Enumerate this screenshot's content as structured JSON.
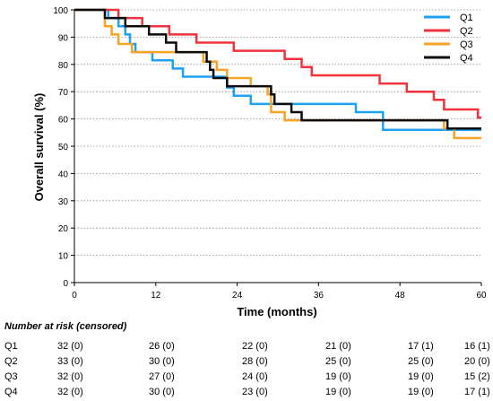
{
  "chart_data": {
    "type": "line",
    "xlabel": "Time (months)",
    "ylabel": "Overall survival  (%)",
    "xlim": [
      0,
      60
    ],
    "ylim": [
      0,
      100
    ],
    "x_ticks": [
      "0",
      "12",
      "24",
      "36",
      "48",
      "60"
    ],
    "y_ticks": [
      "0",
      "10",
      "20",
      "30",
      "40",
      "50",
      "60",
      "70",
      "80",
      "90",
      "100"
    ],
    "grid": "horizontal dotted",
    "legend_position": "top-right",
    "series": [
      {
        "name": "Q1",
        "color": "#1ea1f1",
        "points": [
          [
            0,
            100
          ],
          [
            5.0,
            100
          ],
          [
            5.0,
            97
          ],
          [
            6.5,
            97
          ],
          [
            6.5,
            94
          ],
          [
            7.5,
            94
          ],
          [
            7.5,
            91
          ],
          [
            8.2,
            91
          ],
          [
            8.2,
            87.5
          ],
          [
            9.0,
            87.5
          ],
          [
            9.0,
            84.5
          ],
          [
            11.5,
            84.5
          ],
          [
            11.5,
            81.5
          ],
          [
            14.5,
            81.5
          ],
          [
            14.5,
            78.5
          ],
          [
            16.0,
            78.5
          ],
          [
            16.0,
            75.5
          ],
          [
            22.5,
            75.5
          ],
          [
            22.5,
            71.5
          ],
          [
            23.5,
            71.5
          ],
          [
            23.5,
            68.5
          ],
          [
            26.0,
            68.5
          ],
          [
            26.0,
            65.5
          ],
          [
            41.5,
            65.5
          ],
          [
            41.5,
            62.5
          ],
          [
            45.5,
            62.5
          ],
          [
            45.5,
            56
          ],
          [
            55.0,
            56
          ],
          [
            55.0,
            56
          ],
          [
            60,
            56
          ]
        ]
      },
      {
        "name": "Q2",
        "color": "#f0323c",
        "points": [
          [
            0,
            100
          ],
          [
            6.5,
            100
          ],
          [
            6.5,
            97
          ],
          [
            10.0,
            97
          ],
          [
            10.0,
            94
          ],
          [
            14.0,
            94
          ],
          [
            14.0,
            91
          ],
          [
            18.0,
            91
          ],
          [
            18.0,
            88
          ],
          [
            23.5,
            88
          ],
          [
            23.5,
            85
          ],
          [
            31.0,
            85
          ],
          [
            31.0,
            82
          ],
          [
            33.5,
            82
          ],
          [
            33.5,
            79
          ],
          [
            35.0,
            79
          ],
          [
            35.0,
            76
          ],
          [
            45.0,
            76
          ],
          [
            45.0,
            73
          ],
          [
            49.0,
            73
          ],
          [
            49.0,
            70
          ],
          [
            53.0,
            70
          ],
          [
            53.0,
            67
          ],
          [
            54.5,
            67
          ],
          [
            54.5,
            63.5
          ],
          [
            59.5,
            63.5
          ],
          [
            59.5,
            60.5
          ],
          [
            60,
            60.5
          ]
        ]
      },
      {
        "name": "Q3",
        "color": "#f7a324",
        "points": [
          [
            0,
            100
          ],
          [
            4.5,
            100
          ],
          [
            4.5,
            94
          ],
          [
            5.5,
            94
          ],
          [
            5.5,
            91
          ],
          [
            6.5,
            91
          ],
          [
            6.5,
            87.5
          ],
          [
            8.5,
            87.5
          ],
          [
            8.5,
            84.5
          ],
          [
            19.0,
            84.5
          ],
          [
            19.0,
            81
          ],
          [
            21.0,
            81
          ],
          [
            21.0,
            78
          ],
          [
            22.5,
            78
          ],
          [
            22.5,
            75
          ],
          [
            26.0,
            75
          ],
          [
            26.0,
            72
          ],
          [
            28.5,
            72
          ],
          [
            28.5,
            69
          ],
          [
            29.0,
            69
          ],
          [
            29.0,
            62.5
          ],
          [
            31.0,
            62.5
          ],
          [
            31.0,
            59.5
          ],
          [
            54.5,
            59.5
          ],
          [
            54.5,
            56.5
          ],
          [
            56.0,
            56.5
          ],
          [
            56.0,
            53
          ],
          [
            60,
            53
          ]
        ]
      },
      {
        "name": "Q4",
        "color": "#0b0b0b",
        "points": [
          [
            0,
            100
          ],
          [
            4.5,
            100
          ],
          [
            4.5,
            97
          ],
          [
            7.5,
            97
          ],
          [
            7.5,
            94
          ],
          [
            11.0,
            94
          ],
          [
            11.0,
            91
          ],
          [
            13.5,
            91
          ],
          [
            13.5,
            88
          ],
          [
            15.0,
            88
          ],
          [
            15.0,
            84.5
          ],
          [
            19.5,
            84.5
          ],
          [
            19.5,
            81
          ],
          [
            20.0,
            81
          ],
          [
            20.0,
            78
          ],
          [
            20.5,
            78
          ],
          [
            20.5,
            75
          ],
          [
            22.5,
            75
          ],
          [
            22.5,
            72
          ],
          [
            29.0,
            72
          ],
          [
            29.0,
            69
          ],
          [
            29.5,
            69
          ],
          [
            29.5,
            65.5
          ],
          [
            32.0,
            65.5
          ],
          [
            32.0,
            62.5
          ],
          [
            33.5,
            62.5
          ],
          [
            33.5,
            59.5
          ],
          [
            55.0,
            59.5
          ],
          [
            55.0,
            56.5
          ],
          [
            60,
            56.5
          ]
        ]
      }
    ],
    "risk_table": {
      "title": "Number at risk (censored)",
      "rows": [
        {
          "name": "Q1",
          "values": [
            "32 (0)",
            "26 (0)",
            "22 (0)",
            "21 (0)",
            "17 (1)",
            "16 (1)"
          ]
        },
        {
          "name": "Q2",
          "values": [
            "33 (0)",
            "30 (0)",
            "28 (0)",
            "25 (0)",
            "25 (0)",
            "20 (0)"
          ]
        },
        {
          "name": "Q3",
          "values": [
            "32 (0)",
            "27 (0)",
            "24 (0)",
            "19 (0)",
            "19 (0)",
            "15 (2)"
          ]
        },
        {
          "name": "Q4",
          "values": [
            "32 (0)",
            "30 (0)",
            "23 (0)",
            "19 (0)",
            "19 (0)",
            "17 (1)"
          ]
        }
      ]
    }
  }
}
